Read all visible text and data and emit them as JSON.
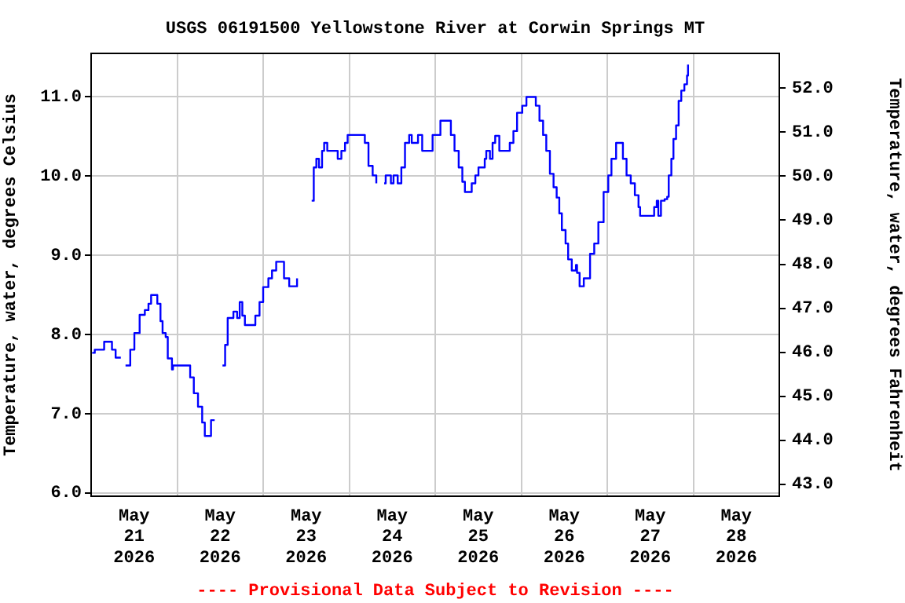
{
  "chart_data": {
    "type": "step",
    "title": "USGS 06191500 Yellowstone River at Corwin Springs MT",
    "ylabel": "Temperature, water, degrees Celsius",
    "y2label": "Temperature, water, degrees Fahrenheit",
    "annotations": [
      "---- Provisional Data Subject to Revision ----"
    ],
    "xlim": [
      "2026-05-21T00:00",
      "2026-05-29T00:00"
    ],
    "xticks": [
      {
        "value": "2026-05-21T12:00",
        "label": "May\n21\n2026"
      },
      {
        "value": "2026-05-22T00:00",
        "label": null
      },
      {
        "value": "2026-05-22T12:00",
        "label": "May\n22\n2026"
      },
      {
        "value": "2026-05-23T00:00",
        "label": null
      },
      {
        "value": "2026-05-23T12:00",
        "label": "May\n23\n2026"
      },
      {
        "value": "2026-05-24T00:00",
        "label": null
      },
      {
        "value": "2026-05-24T12:00",
        "label": "May\n24\n2026"
      },
      {
        "value": "2026-05-25T00:00",
        "label": null
      },
      {
        "value": "2026-05-25T12:00",
        "label": "May\n25\n2026"
      },
      {
        "value": "2026-05-26T00:00",
        "label": null
      },
      {
        "value": "2026-05-26T12:00",
        "label": "May\n26\n2026"
      },
      {
        "value": "2026-05-27T00:00",
        "label": null
      },
      {
        "value": "2026-05-27T12:00",
        "label": "May\n27\n2026"
      },
      {
        "value": "2026-05-28T00:00",
        "label": null
      },
      {
        "value": "2026-05-28T12:00",
        "label": "May\n28\n2026"
      }
    ],
    "ylim": [
      5.96,
      11.55
    ],
    "yticks": [
      {
        "value": 6,
        "label": "6.0"
      },
      {
        "value": 7,
        "label": "7.0"
      },
      {
        "value": 8,
        "label": "8.0"
      },
      {
        "value": 9,
        "label": "9.0"
      },
      {
        "value": 10,
        "label": "10.0"
      },
      {
        "value": 11,
        "label": "11.0"
      }
    ],
    "y2lim": [
      42.73,
      52.79
    ],
    "y2ticks": [
      {
        "value": 43,
        "label": "43.0"
      },
      {
        "value": 44,
        "label": "44.0"
      },
      {
        "value": 45,
        "label": "45.0"
      },
      {
        "value": 46,
        "label": "46.0"
      },
      {
        "value": 47,
        "label": "47.0"
      },
      {
        "value": 48,
        "label": "48.0"
      },
      {
        "value": 49,
        "label": "49.0"
      },
      {
        "value": 50,
        "label": "50.0"
      },
      {
        "value": 51,
        "label": "51.0"
      },
      {
        "value": 52,
        "label": "52.0"
      }
    ],
    "grid": true,
    "legend": false,
    "x": [
      "2026-05-21T00:17",
      "2026-05-21T01:01",
      "2026-05-21T02:55",
      "2026-05-21T03:38",
      "2026-05-21T05:05",
      "2026-05-21T05:49",
      "2026-05-21T06:50",
      "2026-05-21T08:17",
      "2026-05-21T08:52",
      "2026-05-21T09:36",
      "2026-05-21T10:55",
      "2026-05-21T12:04",
      "2026-05-21T13:32",
      "2026-05-21T14:59",
      "2026-05-21T16:00",
      "2026-05-21T16:44",
      "2026-05-21T17:45",
      "2026-05-21T18:28",
      "2026-05-21T19:21",
      "2026-05-21T19:56",
      "2026-05-21T20:48",
      "2026-05-21T21:23",
      "2026-05-21T22:33",
      "2026-05-21T22:50",
      "2026-05-22T02:37",
      "2026-05-22T03:38",
      "2026-05-22T04:39",
      "2026-05-22T05:49",
      "2026-05-22T06:59",
      "2026-05-22T07:43",
      "2026-05-22T09:01",
      "2026-05-22T09:27",
      "2026-05-22T10:28",
      "2026-05-22T11:38",
      "2026-05-22T12:39",
      "2026-05-22T13:23",
      "2026-05-22T14:06",
      "2026-05-22T15:16",
      "2026-05-22T15:42",
      "2026-05-22T16:44",
      "2026-05-22T17:27",
      "2026-05-22T18:11",
      "2026-05-22T18:54",
      "2026-05-22T20:39",
      "2026-05-22T21:49",
      "2026-05-22T22:59",
      "2026-05-23T00:00",
      "2026-05-23T01:27",
      "2026-05-23T02:28",
      "2026-05-23T03:38",
      "2026-05-23T04:48",
      "2026-05-23T05:49",
      "2026-05-23T07:16",
      "2026-05-23T08:44",
      "2026-05-23T09:27",
      "2026-05-23T11:38",
      "2026-05-23T13:32",
      "2026-05-23T14:07",
      "2026-05-23T14:50",
      "2026-05-23T15:34",
      "2026-05-23T16:26",
      "2026-05-23T17:01",
      "2026-05-23T17:53",
      "2026-05-23T19:56",
      "2026-05-23T20:48",
      "2026-05-23T21:49",
      "2026-05-23T22:50",
      "2026-05-23T23:34",
      "2026-05-24T03:21",
      "2026-05-24T04:22",
      "2026-05-24T05:23",
      "2026-05-24T06:33",
      "2026-05-24T07:34",
      "2026-05-24T08:44",
      "2026-05-24T09:45",
      "2026-05-24T10:11",
      "2026-05-24T11:12",
      "2026-05-24T11:38",
      "2026-05-24T12:22",
      "2026-05-24T13:32",
      "2026-05-24T14:33",
      "2026-05-24T15:34",
      "2026-05-24T16:44",
      "2026-05-24T17:27",
      "2026-05-24T18:37",
      "2026-05-24T19:12",
      "2026-05-24T20:22",
      "2026-05-24T21:49",
      "2026-05-24T23:16",
      "2026-05-25T00:26",
      "2026-05-25T01:27",
      "2026-05-25T03:21",
      "2026-05-25T04:22",
      "2026-05-25T05:23",
      "2026-05-25T06:33",
      "2026-05-25T07:34",
      "2026-05-25T08:17",
      "2026-05-25T09:27",
      "2026-05-25T10:11",
      "2026-05-25T11:12",
      "2026-05-25T12:04",
      "2026-05-25T13:49",
      "2026-05-25T14:15",
      "2026-05-25T15:16",
      "2026-05-25T16:00",
      "2026-05-25T16:44",
      "2026-05-25T17:53",
      "2026-05-25T19:56",
      "2026-05-25T20:48",
      "2026-05-25T21:49",
      "2026-05-25T22:50",
      "2026-05-26T00:17",
      "2026-05-26T01:27",
      "2026-05-26T03:20",
      "2026-05-26T04:04",
      "2026-05-26T05:05",
      "2026-05-26T06:06",
      "2026-05-26T06:59",
      "2026-05-26T08:00",
      "2026-05-26T09:01",
      "2026-05-26T09:53",
      "2026-05-26T10:37",
      "2026-05-26T11:20",
      "2026-05-26T12:22",
      "2026-05-26T13:05",
      "2026-05-26T14:06",
      "2026-05-26T15:16",
      "2026-05-26T15:34",
      "2026-05-26T16:17",
      "2026-05-26T17:01",
      "2026-05-26T17:27",
      "2026-05-26T18:28",
      "2026-05-26T19:12",
      "2026-05-26T20:22",
      "2026-05-26T21:31",
      "2026-05-26T22:59",
      "2026-05-27T00:17",
      "2026-05-27T01:10",
      "2026-05-27T02:28",
      "2026-05-27T03:21",
      "2026-05-27T04:22",
      "2026-05-27T05:23",
      "2026-05-27T06:33",
      "2026-05-27T07:42",
      "2026-05-27T08:43",
      "2026-05-27T09:10",
      "2026-05-27T12:22",
      "2026-05-27T13:05",
      "2026-05-27T13:49",
      "2026-05-27T14:15",
      "2026-05-27T14:59",
      "2026-05-27T16:00",
      "2026-05-27T16:43",
      "2026-05-27T17:09",
      "2026-05-27T17:53",
      "2026-05-27T18:28",
      "2026-05-27T19:12",
      "2026-05-27T19:55",
      "2026-05-27T20:39",
      "2026-05-27T21:31",
      "2026-05-27T22:15",
      "2026-05-27T22:32"
    ],
    "series": [
      {
        "color": "#0000ff",
        "values": [
          7.77,
          7.81,
          7.81,
          7.91,
          7.91,
          7.81,
          7.71,
          7.71,
          null,
          7.61,
          7.81,
          8.02,
          8.25,
          8.31,
          8.39,
          8.5,
          8.5,
          8.39,
          8.17,
          8.02,
          7.97,
          7.7,
          7.56,
          7.61,
          7.61,
          7.46,
          7.26,
          7.09,
          6.89,
          6.72,
          6.72,
          6.92,
          6.92,
          null,
          7.61,
          7.87,
          8.21,
          8.21,
          8.29,
          8.21,
          8.41,
          8.24,
          8.12,
          8.12,
          8.24,
          8.41,
          8.6,
          8.71,
          8.81,
          8.92,
          8.92,
          8.71,
          8.61,
          8.61,
          8.71,
          null,
          9.69,
          10.11,
          10.22,
          10.11,
          10.32,
          10.42,
          10.32,
          10.32,
          10.22,
          10.32,
          10.42,
          10.52,
          10.52,
          10.42,
          10.13,
          10.01,
          9.91,
          null,
          9.91,
          10.01,
          10.01,
          9.91,
          10.01,
          9.91,
          10.11,
          10.42,
          10.52,
          10.42,
          10.42,
          10.52,
          10.32,
          10.32,
          10.52,
          10.52,
          10.7,
          10.7,
          10.52,
          10.32,
          10.11,
          9.93,
          9.8,
          9.8,
          9.91,
          10.01,
          10.11,
          10.22,
          10.32,
          10.22,
          10.42,
          10.51,
          10.32,
          10.32,
          10.42,
          10.57,
          10.8,
          10.89,
          11.0,
          11.0,
          10.89,
          10.7,
          10.52,
          10.32,
          10.03,
          9.86,
          9.73,
          9.53,
          9.32,
          9.15,
          8.95,
          8.81,
          8.88,
          8.78,
          8.61,
          8.61,
          8.71,
          8.71,
          9.02,
          9.15,
          9.42,
          9.8,
          10.01,
          10.22,
          10.42,
          10.42,
          10.22,
          10.01,
          9.91,
          9.76,
          9.61,
          9.5,
          9.5,
          9.61,
          9.69,
          9.5,
          9.69,
          9.71,
          9.74,
          10.01,
          10.22,
          10.47,
          10.64,
          10.95,
          11.08,
          11.16,
          11.27,
          11.41
        ]
      }
    ]
  }
}
